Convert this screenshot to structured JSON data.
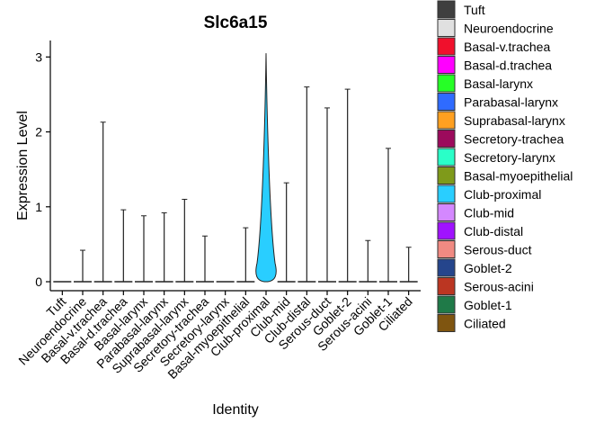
{
  "chart_data": {
    "type": "violin",
    "title": "Slc6a15",
    "xlabel": "Identity",
    "ylabel": "Expression Level",
    "ylim": [
      -0.12,
      3.22
    ],
    "yticks": [
      0,
      1,
      2,
      3
    ],
    "grid": false,
    "legend_position": "right",
    "categories": [
      "Tuft",
      "Neuroendocrine",
      "Basal-v.trachea",
      "Basal-d.trachea",
      "Basal-larynx",
      "Parabasal-larynx",
      "Suprabasal-larynx",
      "Secretory-trachea",
      "Secretory-larynx",
      "Basal-myoepithelial",
      "Club-proximal",
      "Club-mid",
      "Club-distal",
      "Serous-duct",
      "Goblet-2",
      "Serous-acini",
      "Goblet-1",
      "Ciliated"
    ],
    "max_values": [
      0,
      0.42,
      2.13,
      0.96,
      0.88,
      0.92,
      1.1,
      0.61,
      0,
      0.72,
      3.05,
      1.32,
      2.6,
      2.32,
      2.57,
      0.55,
      1.78,
      0.46
    ],
    "colors": [
      "#3f3f3f",
      "#e0e0e0",
      "#f0102c",
      "#ff00ff",
      "#26ff26",
      "#2f6bff",
      "#ffa020",
      "#9c0a5c",
      "#2affc8",
      "#7f9a1a",
      "#29ceff",
      "#d488ff",
      "#a012ff",
      "#f08a82",
      "#25458c",
      "#bb3622",
      "#1f7a48",
      "#7f5510"
    ],
    "legend": [
      "Tuft",
      "Neuroendocrine",
      "Basal-v.trachea",
      "Basal-d.trachea",
      "Basal-larynx",
      "Parabasal-larynx",
      "Suprabasal-larynx",
      "Secretory-trachea",
      "Secretory-larynx",
      "Basal-myoepithelial",
      "Club-proximal",
      "Club-mid",
      "Club-distal",
      "Serous-duct",
      "Goblet-2",
      "Serous-acini",
      "Goblet-1",
      "Ciliated"
    ]
  }
}
